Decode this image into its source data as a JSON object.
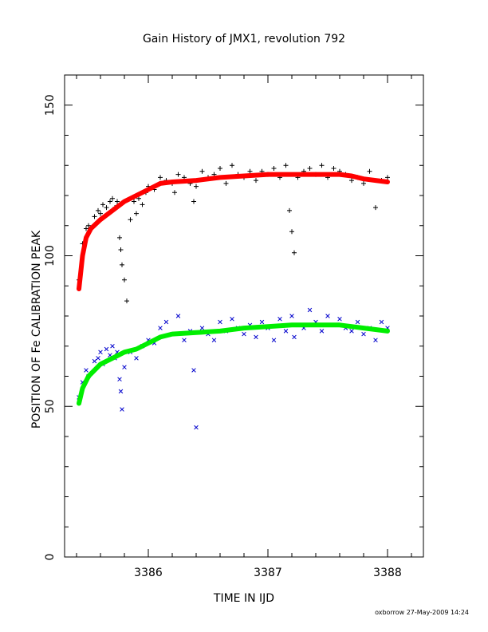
{
  "chart_data": {
    "type": "scatter",
    "title": "Gain History of JMX1, revolution 792",
    "xlabel": "TIME IN IJD",
    "ylabel": "POSITION OF Fe CALIBRATION PEAK",
    "xlim": [
      3385.3,
      3388.3
    ],
    "ylim": [
      0,
      160
    ],
    "x_ticks": [
      "3386",
      "3387",
      "3388"
    ],
    "x_tick_values": [
      3386,
      3387,
      3388
    ],
    "y_ticks": [
      "0",
      "50",
      "100",
      "150"
    ],
    "y_tick_values": [
      0,
      50,
      100,
      150
    ],
    "grid": false,
    "series": [
      {
        "marker": "+",
        "color": "#000000",
        "x": [
          3385.42,
          3385.45,
          3385.48,
          3385.5,
          3385.55,
          3385.58,
          3385.6,
          3385.62,
          3385.65,
          3385.68,
          3385.7,
          3385.72,
          3385.74,
          3385.76,
          3385.77,
          3385.78,
          3385.8,
          3385.82,
          3385.85,
          3385.88,
          3385.9,
          3385.92,
          3385.95,
          3385.98,
          3386.0,
          3386.05,
          3386.1,
          3386.15,
          3386.2,
          3386.22,
          3386.25,
          3386.3,
          3386.35,
          3386.38,
          3386.4,
          3386.45,
          3386.5,
          3386.55,
          3386.6,
          3386.65,
          3386.7,
          3386.75,
          3386.8,
          3386.85,
          3386.9,
          3386.95,
          3387.0,
          3387.05,
          3387.1,
          3387.15,
          3387.18,
          3387.2,
          3387.22,
          3387.25,
          3387.3,
          3387.35,
          3387.4,
          3387.45,
          3387.5,
          3387.55,
          3387.6,
          3387.65,
          3387.7,
          3387.75,
          3387.8,
          3387.85,
          3387.9,
          3387.95,
          3388.0
        ],
        "y": [
          92,
          104,
          109,
          110,
          113,
          115,
          114,
          117,
          116,
          118,
          119,
          116,
          118,
          106,
          102,
          97,
          92,
          85,
          112,
          118,
          114,
          119,
          117,
          121,
          123,
          122,
          126,
          125,
          124,
          121,
          127,
          126,
          124,
          118,
          123,
          128,
          126,
          127,
          129,
          124,
          130,
          127,
          126,
          128,
          125,
          128,
          127,
          129,
          126,
          130,
          115,
          108,
          101,
          126,
          128,
          129,
          127,
          130,
          126,
          129,
          128,
          127,
          125,
          126,
          124,
          128,
          116,
          125,
          126
        ]
      },
      {
        "marker": "x",
        "color": "#0000cc",
        "x": [
          3385.42,
          3385.45,
          3385.48,
          3385.5,
          3385.55,
          3385.58,
          3385.6,
          3385.62,
          3385.65,
          3385.68,
          3385.7,
          3385.72,
          3385.74,
          3385.76,
          3385.77,
          3385.78,
          3385.8,
          3385.85,
          3385.9,
          3385.95,
          3386.0,
          3386.05,
          3386.1,
          3386.15,
          3386.2,
          3386.25,
          3386.3,
          3386.35,
          3386.38,
          3386.4,
          3386.45,
          3386.5,
          3386.55,
          3386.6,
          3386.65,
          3386.7,
          3386.75,
          3386.8,
          3386.85,
          3386.9,
          3386.95,
          3387.0,
          3387.05,
          3387.1,
          3387.15,
          3387.2,
          3387.22,
          3387.25,
          3387.3,
          3387.35,
          3387.4,
          3387.45,
          3387.5,
          3387.55,
          3387.6,
          3387.65,
          3387.7,
          3387.75,
          3387.8,
          3387.85,
          3387.9,
          3387.95,
          3388.0
        ],
        "y": [
          53,
          58,
          62,
          60,
          65,
          66,
          68,
          64,
          69,
          67,
          70,
          66,
          68,
          59,
          55,
          49,
          63,
          68,
          66,
          70,
          72,
          71,
          76,
          78,
          74,
          80,
          72,
          75,
          62,
          43,
          76,
          74,
          72,
          78,
          75,
          79,
          76,
          74,
          77,
          73,
          78,
          76,
          72,
          79,
          75,
          80,
          73,
          77,
          76,
          82,
          78,
          75,
          80,
          77,
          79,
          76,
          75,
          78,
          74,
          76,
          72,
          78,
          76
        ]
      }
    ],
    "fit_lines": [
      {
        "color": "#ff0000",
        "x": [
          3385.42,
          3385.45,
          3385.48,
          3385.52,
          3385.6,
          3385.7,
          3385.8,
          3385.9,
          3386.0,
          3386.1,
          3386.2,
          3386.4,
          3386.6,
          3386.8,
          3387.0,
          3387.2,
          3387.4,
          3387.6,
          3387.7,
          3387.8,
          3387.9,
          3388.0
        ],
        "y": [
          89,
          100,
          106,
          109,
          112,
          115,
          118,
          120,
          122,
          124,
          124.5,
          125,
          126,
          126.5,
          127,
          127,
          127,
          127,
          126.5,
          125.5,
          125,
          124.5
        ]
      },
      {
        "color": "#00ee00",
        "x": [
          3385.42,
          3385.45,
          3385.5,
          3385.6,
          3385.7,
          3385.8,
          3385.9,
          3386.0,
          3386.1,
          3386.2,
          3386.4,
          3386.6,
          3386.8,
          3387.0,
          3387.2,
          3387.4,
          3387.6,
          3387.7,
          3387.8,
          3387.9,
          3388.0
        ],
        "y": [
          51,
          56,
          60,
          64,
          66,
          68,
          69,
          71,
          73,
          74,
          74.5,
          75,
          76,
          76.5,
          77,
          77,
          77,
          76.5,
          76,
          75.5,
          75
        ]
      }
    ]
  },
  "footer": {
    "credit": "oxborrow 27-May-2009 14:24"
  }
}
